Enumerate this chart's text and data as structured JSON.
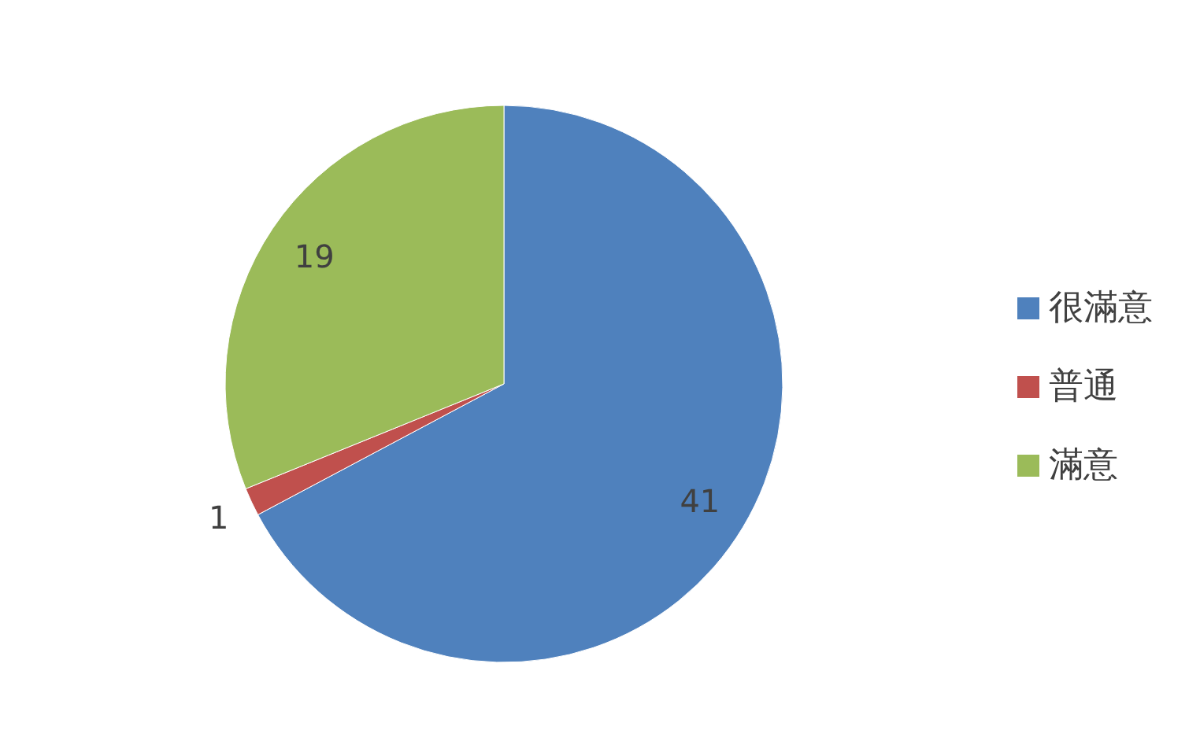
{
  "chart_data": {
    "type": "pie",
    "categories": [
      "很滿意",
      "普通",
      "滿意"
    ],
    "values": [
      41,
      1,
      19
    ],
    "colors": [
      "#4f81bd",
      "#c0504d",
      "#9bbb59"
    ],
    "data_labels": true,
    "legend": "right"
  }
}
